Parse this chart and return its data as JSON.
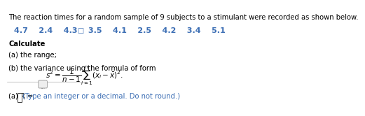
{
  "background_color": "#ffffff",
  "title_text": "The reaction times for a random sample of 9 subjects to a stimulant were recorded as shown below.",
  "data_values": "4.7    2.4    4.3    3.5    4.1    2.5    4.2    3.4    5.1",
  "calculate_label": "Calculate",
  "part_a_label": "(a) the range;",
  "part_b_label": "(b) the variance using the formula of form ",
  "formula": "$s^2 = \\dfrac{1}{n-1}\\sum_{i=1}^{n}(x_i - \\bar{x})^2.$",
  "dots_button": "...",
  "answer_line": "(a) R = ",
  "answer_hint": "(Type an integer or a decimal. Do not round.)",
  "title_color": "#000000",
  "data_color": "#3c6eb4",
  "calculate_color": "#000000",
  "part_color": "#000000",
  "formula_color": "#000000",
  "answer_color": "#000000",
  "hint_color": "#3c6eb4",
  "font_size_title": 7.2,
  "font_size_data": 8.0,
  "font_size_body": 7.2,
  "font_size_formula": 7.5,
  "font_size_answer": 7.2
}
